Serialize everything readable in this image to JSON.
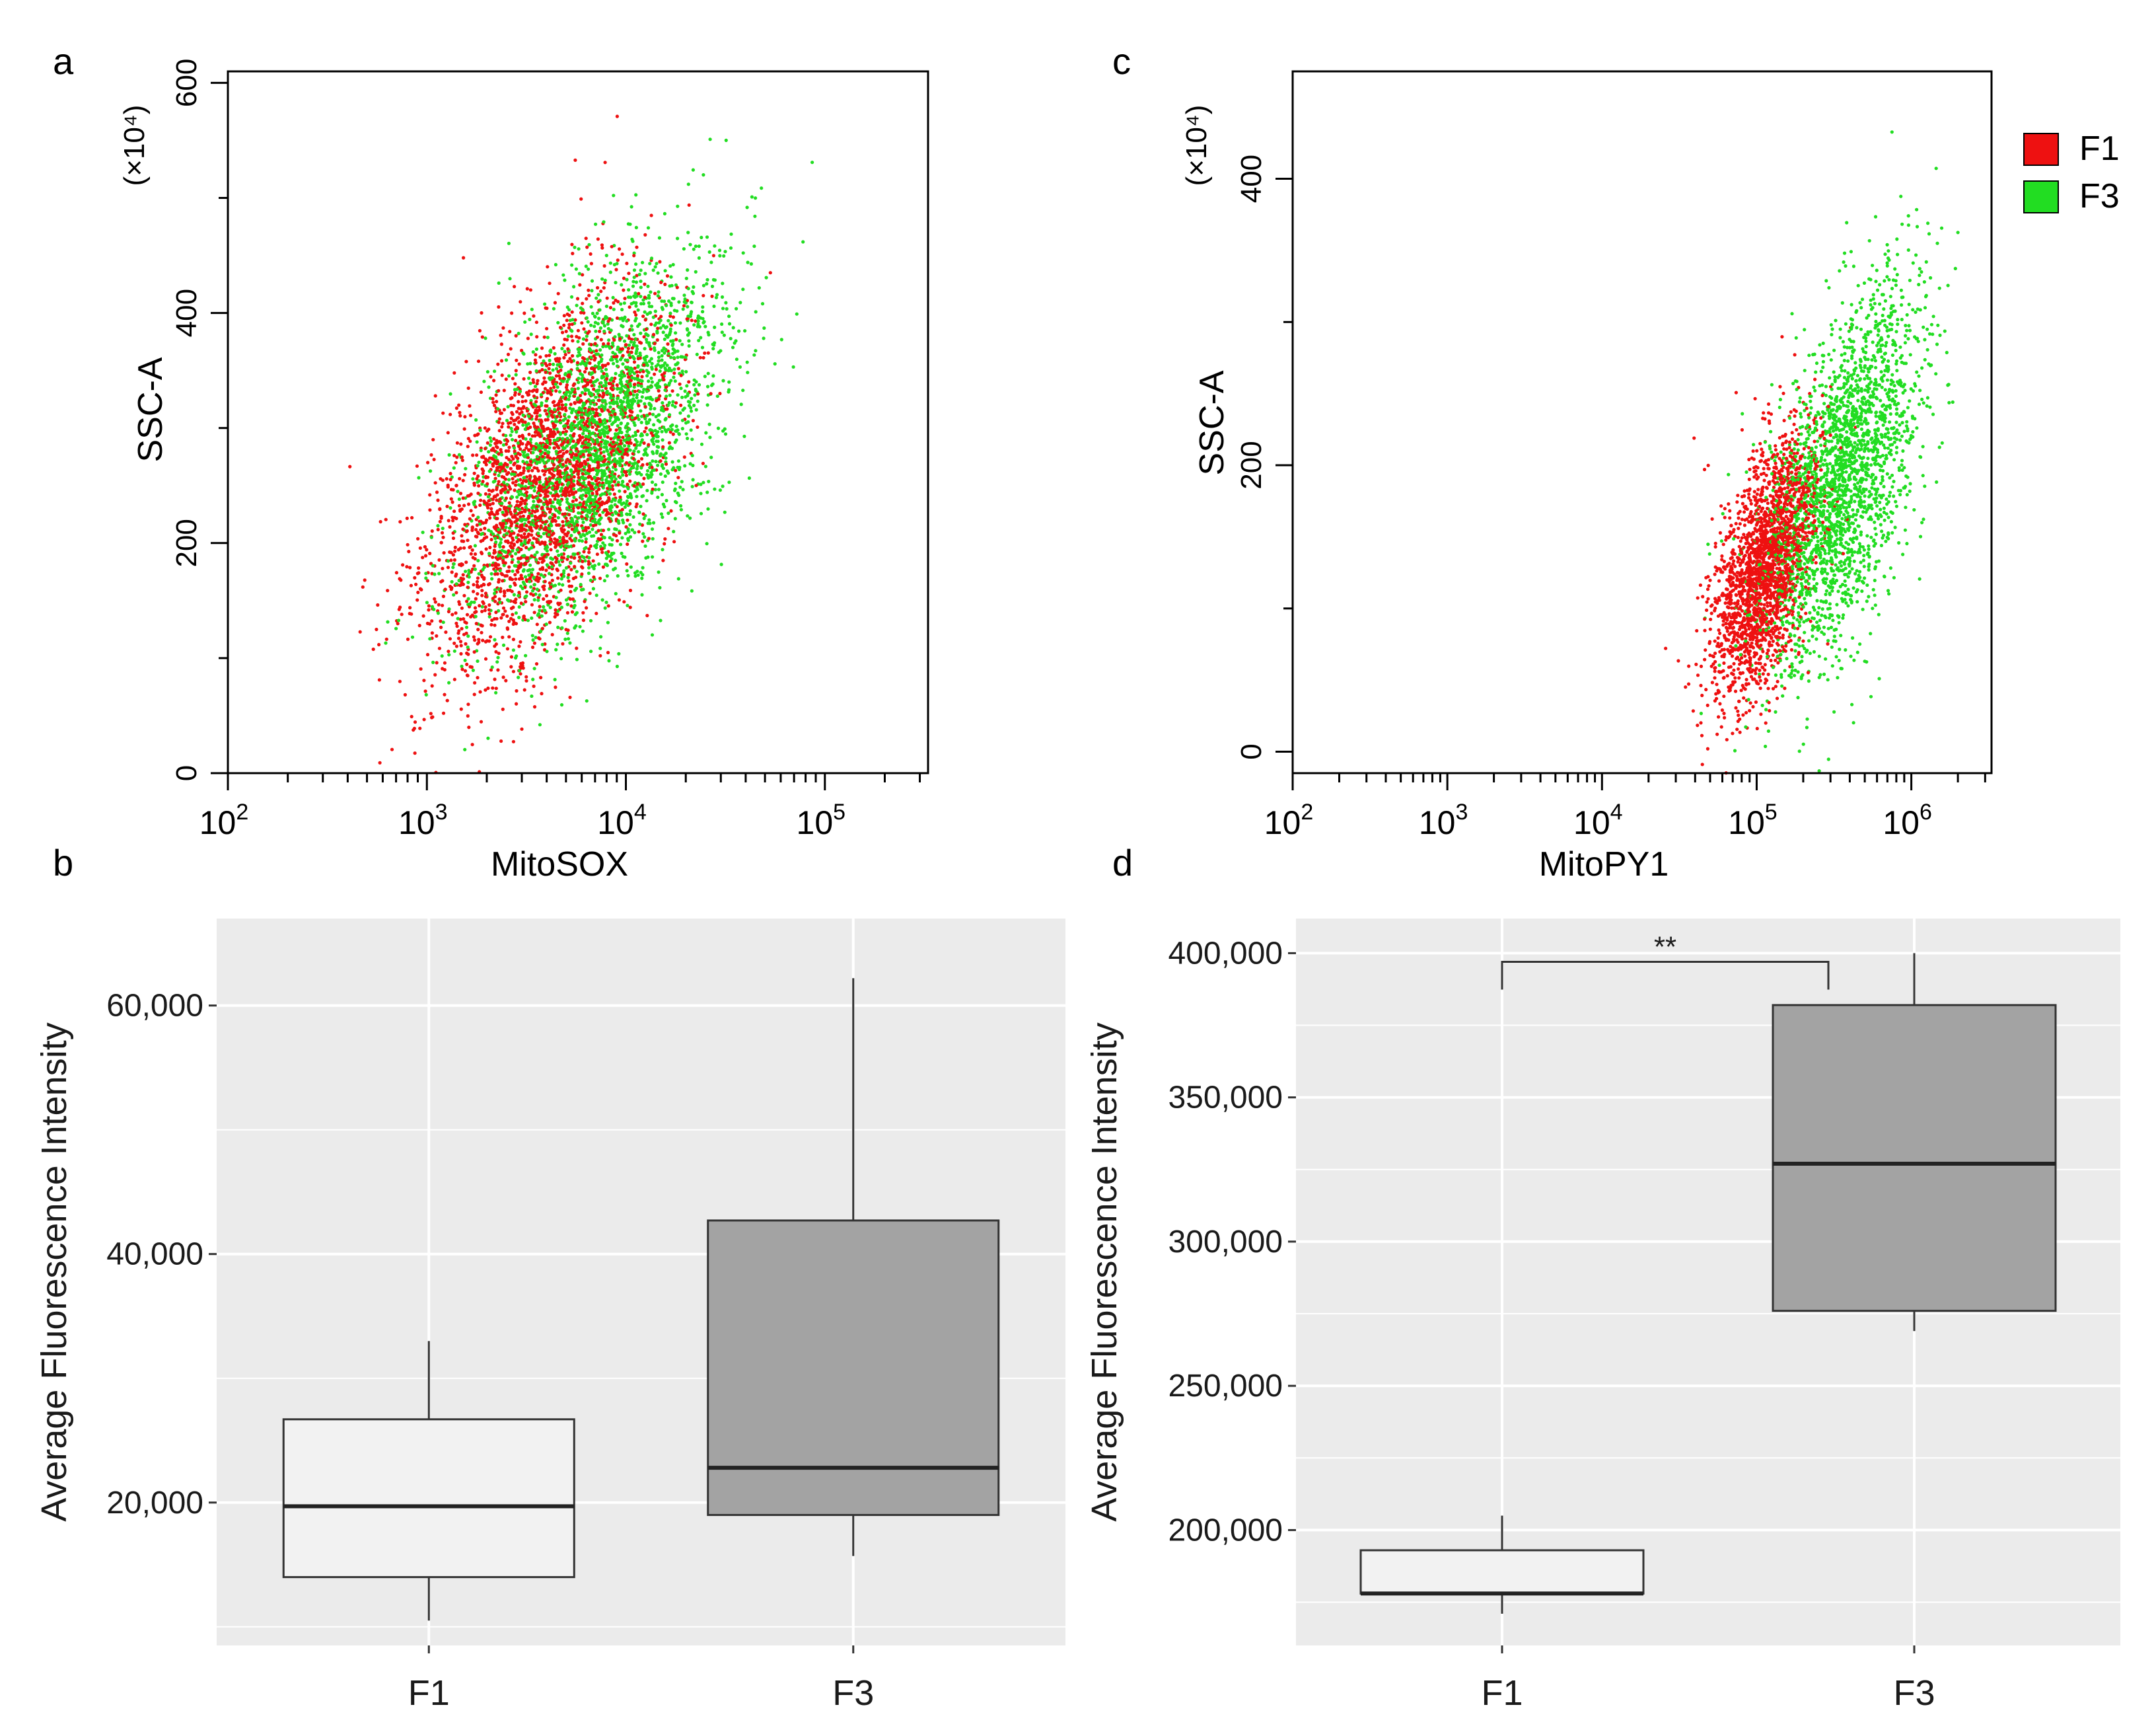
{
  "chart_data": [
    {
      "panel": "a",
      "type": "scatter",
      "xlabel": "MitoSOX",
      "ylabel": "SSC-A",
      "y_scale_label": "(×10⁴)",
      "x_scale": "log",
      "xlim": [
        100,
        330000
      ],
      "ylim": [
        0,
        610
      ],
      "x_tick_base": "10",
      "x_tick_exponents": [
        "2",
        "3",
        "4",
        "5"
      ],
      "y_ticks": [
        0,
        200,
        400,
        600
      ],
      "series": [
        {
          "name": "F1",
          "color": "#ee1111",
          "center_log10_x": 3.6,
          "center_y": 255,
          "spread_log10_x": 0.3,
          "spread_y": 80,
          "n": 2600
        },
        {
          "name": "F3",
          "color": "#22dd22",
          "center_log10_x": 3.85,
          "center_y": 285,
          "spread_log10_x": 0.32,
          "spread_y": 80,
          "n": 2600
        }
      ]
    },
    {
      "panel": "c",
      "type": "scatter",
      "xlabel": "MitoPY1",
      "ylabel": "SSC-A",
      "y_scale_label": "(×10⁴)",
      "x_scale": "log",
      "xlim": [
        100,
        3300000
      ],
      "ylim": [
        -15,
        475
      ],
      "x_tick_base": "10",
      "x_tick_exponents": [
        "2",
        "3",
        "4",
        "5",
        "6"
      ],
      "y_ticks": [
        0,
        200,
        400
      ],
      "legend": [
        "F1",
        "F3"
      ],
      "series": [
        {
          "name": "F1",
          "color": "#ee1111",
          "center_log10_x": 5.05,
          "center_y": 130,
          "spread_log10_x": 0.17,
          "spread_y": 45,
          "n": 2200
        },
        {
          "name": "F3",
          "color": "#22dd22",
          "center_log10_x": 5.55,
          "center_y": 190,
          "spread_log10_x": 0.25,
          "spread_y": 65,
          "n": 2400
        }
      ]
    },
    {
      "panel": "b",
      "type": "box",
      "ylabel": "Average Fluorescence Intensity",
      "categories": [
        "F1",
        "F3"
      ],
      "ylim": [
        8500,
        67000
      ],
      "y_ticks": [
        20000,
        40000,
        60000
      ],
      "y_tick_labels": [
        "20,000",
        "40,000",
        "60,000"
      ],
      "boxes": [
        {
          "name": "F1",
          "min": 10500,
          "q1": 14000,
          "median": 19700,
          "q3": 26700,
          "max": 33000,
          "fill": "#f2f2f2"
        },
        {
          "name": "F3",
          "min": 15700,
          "q1": 19000,
          "median": 22800,
          "q3": 42700,
          "max": 62200,
          "fill": "#a3a3a3"
        }
      ]
    },
    {
      "panel": "d",
      "type": "box",
      "ylabel": "Average Fluorescence Intensity",
      "categories": [
        "F1",
        "F3"
      ],
      "ylim": [
        160000,
        412000
      ],
      "y_ticks": [
        200000,
        250000,
        300000,
        350000,
        400000
      ],
      "y_tick_labels": [
        "200,000",
        "250,000",
        "300,000",
        "350,000",
        "400,000"
      ],
      "significance": "**",
      "boxes": [
        {
          "name": "F1",
          "min": 171000,
          "q1": 178000,
          "median": 178000,
          "q3": 193000,
          "max": 205000,
          "fill": "#f2f2f2"
        },
        {
          "name": "F3",
          "min": 269000,
          "q1": 276000,
          "median": 327000,
          "q3": 382000,
          "max": 400000,
          "fill": "#a3a3a3"
        }
      ]
    }
  ]
}
